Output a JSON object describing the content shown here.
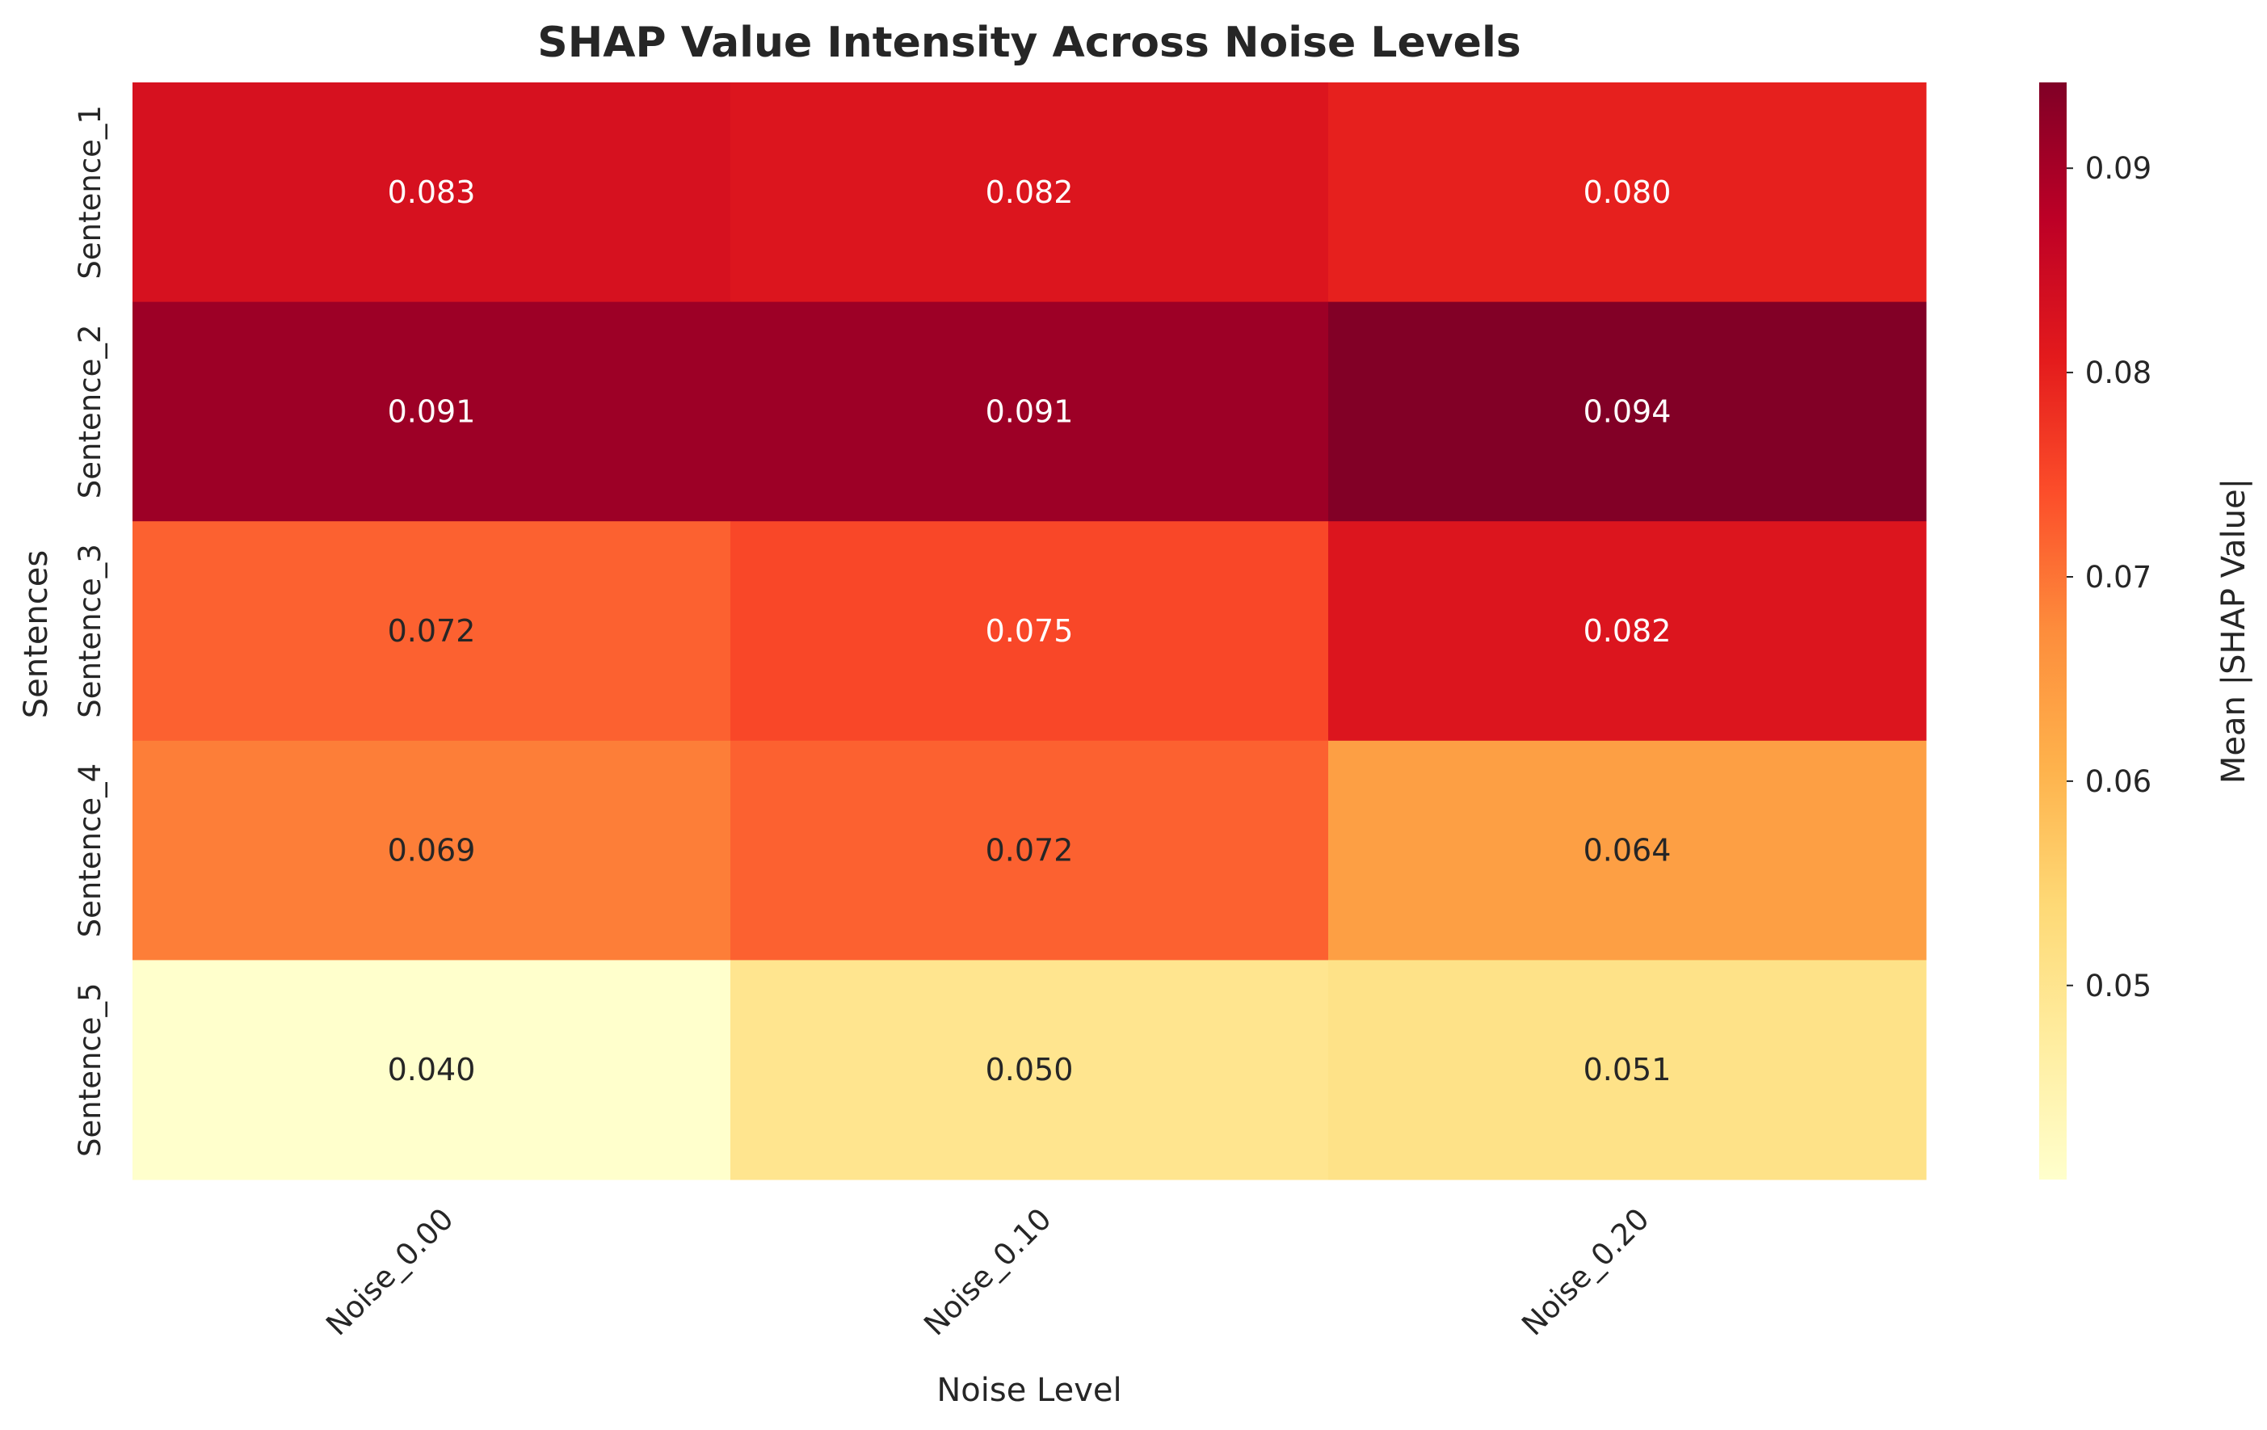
{
  "chart_data": {
    "type": "heatmap",
    "title": "SHAP Value Intensity Across Noise Levels",
    "xlabel": "Noise Level",
    "ylabel": "Sentences",
    "x_categories": [
      "Noise_0.00",
      "Noise_0.10",
      "Noise_0.20"
    ],
    "y_categories": [
      "Sentence_1",
      "Sentence_2",
      "Sentence_3",
      "Sentence_4",
      "Sentence_5"
    ],
    "values": [
      [
        0.083,
        0.082,
        0.08
      ],
      [
        0.091,
        0.091,
        0.094
      ],
      [
        0.072,
        0.075,
        0.082
      ],
      [
        0.069,
        0.072,
        0.064
      ],
      [
        0.04,
        0.05,
        0.051
      ]
    ],
    "value_format": "0.000",
    "colormap": "YlOrRd",
    "colorbar": {
      "label": "Mean |SHAP Value|",
      "range": [
        0.0405,
        0.0942
      ],
      "ticks": [
        0.05,
        0.06,
        0.07,
        0.08,
        0.09
      ],
      "tick_labels": [
        "0.05",
        "0.06",
        "0.07",
        "0.08",
        "0.09"
      ]
    },
    "grid": false
  }
}
